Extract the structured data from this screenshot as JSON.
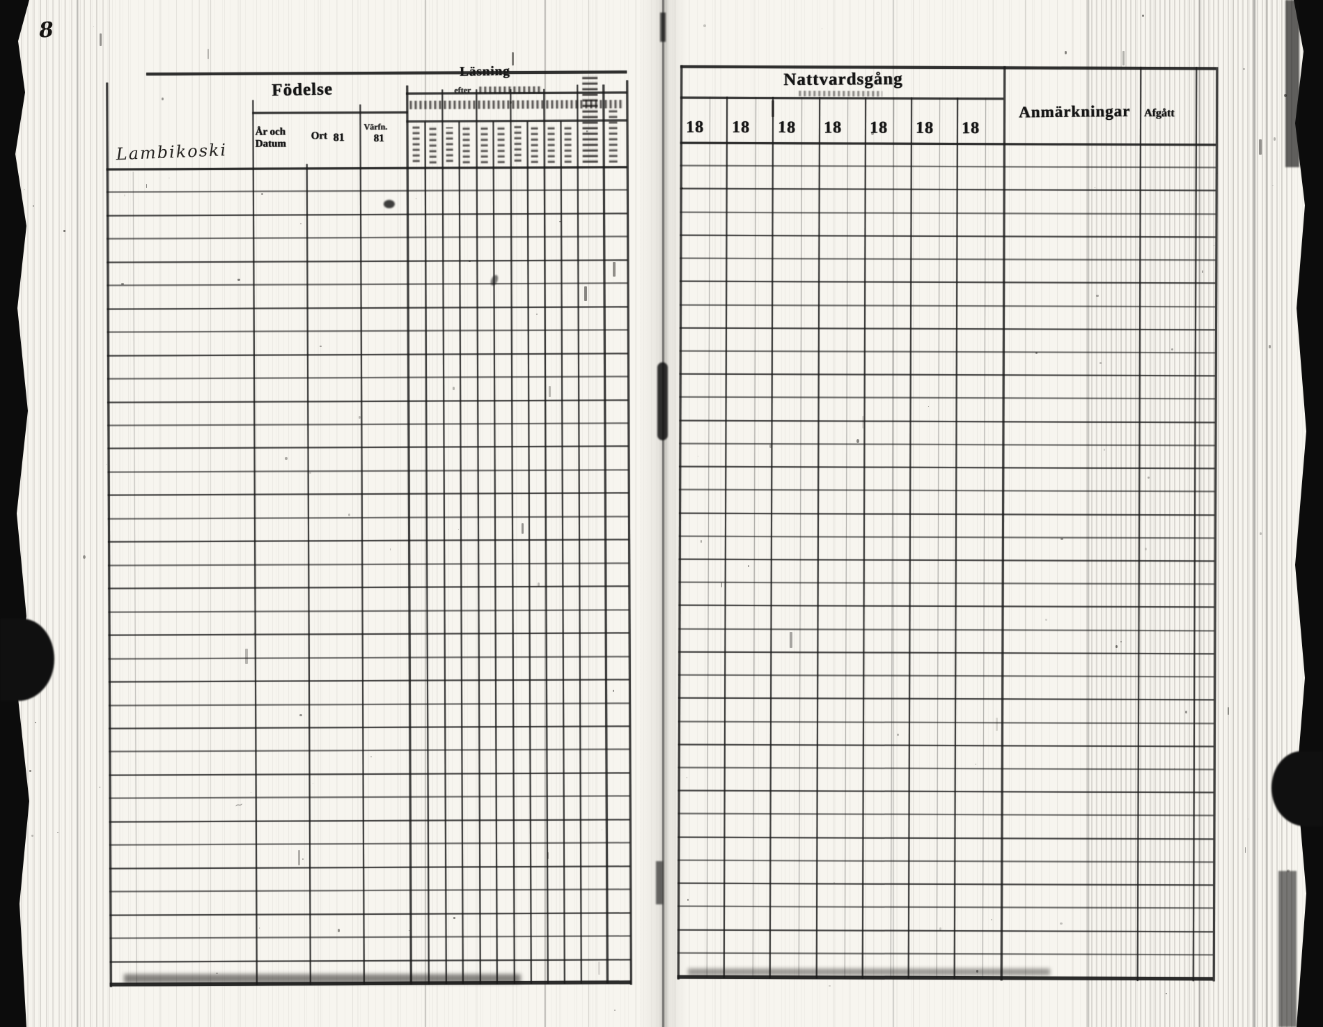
{
  "document": {
    "corner_page_number": "8",
    "handwritten_entry": "Lambikoski",
    "colors": {
      "ink": "#1b1b1b",
      "paper": "#f7f5ef",
      "edge": "#0c0c0c"
    },
    "left_page": {
      "birth_group_label": "Födelse",
      "birth_sub_year_date": "År och Datum",
      "birth_sub_place": "Ort",
      "birth_sub_place_year": "81",
      "birth_sub_extra": "Värfn.",
      "birth_sub_extra_year": "81",
      "reading_group_label": "Läsning",
      "reading_sub_label": "efter",
      "row_count": 35
    },
    "right_page": {
      "communion_group_label": "Nattvardsgång",
      "year_column_labels": [
        "18",
        "18",
        "18",
        "18",
        "18",
        "18",
        "18"
      ],
      "remarks_label": "Anmärkningar",
      "departed_label": "Afgått",
      "row_count": 36
    }
  }
}
